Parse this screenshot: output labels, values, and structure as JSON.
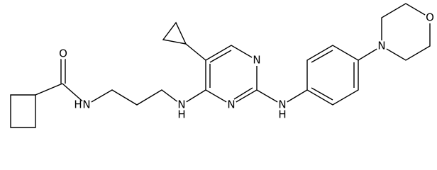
{
  "atoms": [
    "O",
    "N",
    "H",
    "N",
    "H",
    "N",
    "N",
    "N",
    "H",
    "N",
    "O"
  ]
}
